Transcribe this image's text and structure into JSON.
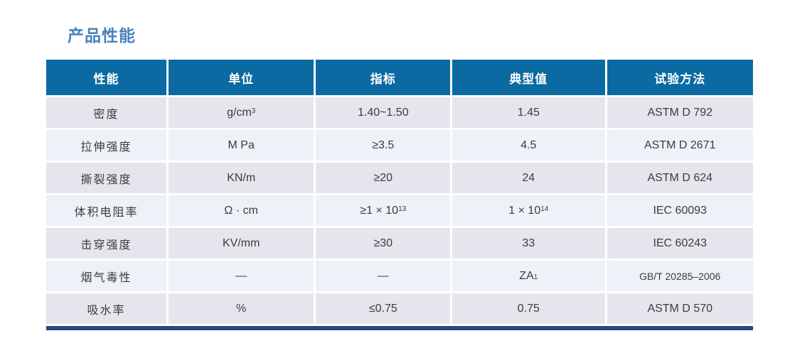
{
  "title": "产品性能",
  "colors": {
    "title": "#4583BE",
    "header_bg": "#0B6AA1",
    "header_text": "#FFFFFF",
    "row_dark": "#E7E4EE",
    "row_light": "#EDF1F8",
    "bottom_bar": "#27497B",
    "cell_text": "#3C3C3C"
  },
  "table": {
    "headers": [
      "性能",
      "单位",
      "指标",
      "典型值",
      "试验方法"
    ],
    "rows": [
      {
        "property": "密度",
        "unit": {
          "text": "g/cm",
          "sup": "3"
        },
        "spec": "1.40~1.50",
        "typical": "1.45",
        "method": "ASTM D 792"
      },
      {
        "property": "拉伸强度",
        "unit": "M Pa",
        "spec": "≥3.5",
        "typical": "4.5",
        "method": "ASTM D 2671"
      },
      {
        "property": "撕裂强度",
        "unit": "KN/m",
        "spec": "≥20",
        "typical": "24",
        "method": "ASTM D 624"
      },
      {
        "property": "体积电阻率",
        "unit": "Ω · cm",
        "spec": {
          "text": "≥1 × 10",
          "sup": "13"
        },
        "typical": {
          "text": "1 × 10",
          "sup": "14"
        },
        "method": "IEC 60093"
      },
      {
        "property": "击穿强度",
        "unit": "KV/mm",
        "spec": "≥30",
        "typical": "33",
        "method": "IEC 60243"
      },
      {
        "property": "烟气毒性",
        "unit": "—",
        "spec": "—",
        "typical": {
          "text": "ZA",
          "sub": "1"
        },
        "method": "GB/T 20285–2006"
      },
      {
        "property": "吸水率",
        "unit": "%",
        "spec": "≤0.75",
        "typical": "0.75",
        "method": "ASTM D 570"
      }
    ]
  }
}
